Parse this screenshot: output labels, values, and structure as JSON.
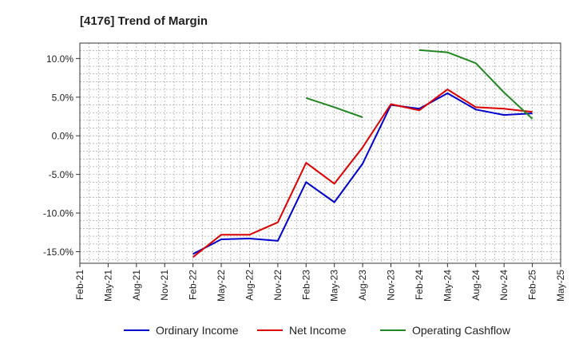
{
  "chart_data": {
    "type": "line",
    "title": "[4176]  Trend of Margin",
    "xlabel": "",
    "ylabel": "",
    "ylim": [
      -16.5,
      12.0
    ],
    "yticks": [
      10.0,
      5.0,
      0.0,
      -5.0,
      -10.0,
      -15.0
    ],
    "ytick_labels": [
      "10.0%",
      "5.0%",
      "0.0%",
      "-5.0%",
      "-10.0%",
      "-15.0%"
    ],
    "categories": [
      "Feb-21",
      "May-21",
      "Aug-21",
      "Nov-21",
      "Feb-22",
      "May-22",
      "Aug-22",
      "Nov-22",
      "Feb-23",
      "May-23",
      "Aug-23",
      "Nov-23",
      "Feb-24",
      "May-24",
      "Aug-24",
      "Nov-24",
      "Feb-25",
      "May-25"
    ],
    "grid": true,
    "legend_position": "bottom",
    "series": [
      {
        "name": "Ordinary Income",
        "color": "#0000cc",
        "values": [
          null,
          null,
          null,
          null,
          -15.3,
          -13.4,
          -13.3,
          -13.6,
          -6.0,
          -8.6,
          -3.6,
          4.0,
          3.5,
          5.5,
          3.4,
          2.7,
          2.9,
          null
        ]
      },
      {
        "name": "Net Income",
        "color": "#dd0000",
        "values": [
          null,
          null,
          null,
          null,
          -15.7,
          -12.8,
          -12.8,
          -11.2,
          -3.5,
          -6.2,
          -1.5,
          4.1,
          3.3,
          6.0,
          3.7,
          3.5,
          3.1,
          null
        ]
      },
      {
        "name": "Operating Cashflow",
        "color": "#228822",
        "values": [
          null,
          null,
          null,
          null,
          null,
          null,
          null,
          null,
          4.9,
          3.7,
          2.4,
          null,
          11.1,
          10.8,
          9.4,
          5.6,
          2.2,
          null
        ]
      }
    ]
  }
}
